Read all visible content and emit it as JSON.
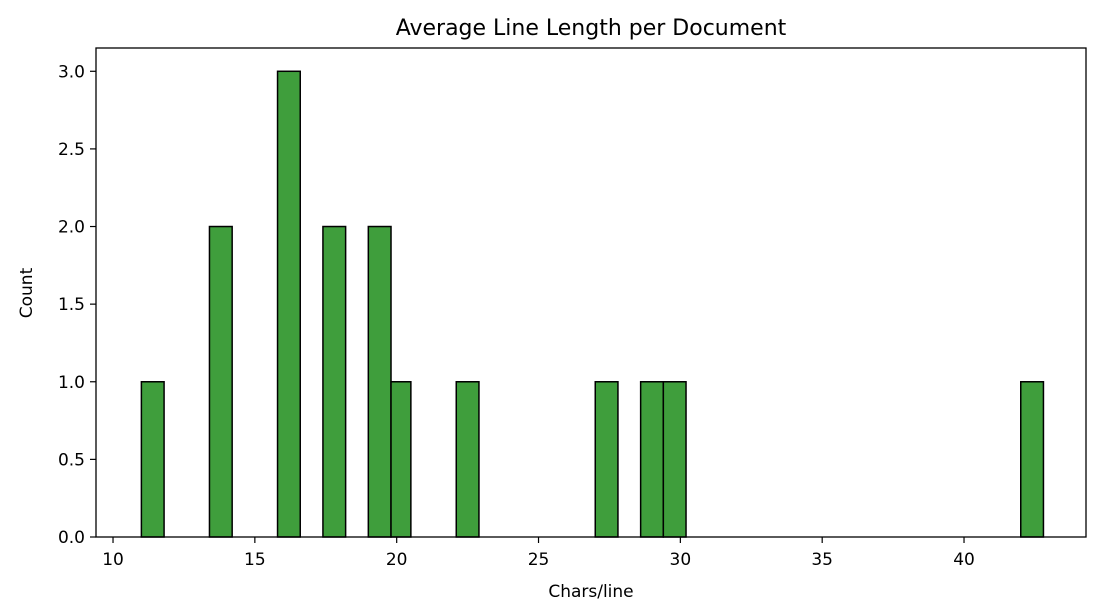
{
  "chart_data": {
    "type": "bar",
    "title": "Average Line Length per Document",
    "xlabel": "Chars/line",
    "ylabel": "Count",
    "xlim": [
      9.4,
      44.3
    ],
    "ylim": [
      0,
      3.15
    ],
    "bar_color": "#3f9e3c",
    "edge_color": "#000000",
    "grid": false,
    "bins": [
      {
        "x0": 11.0,
        "x1": 11.8,
        "value": 1
      },
      {
        "x0": 13.4,
        "x1": 14.2,
        "value": 2
      },
      {
        "x0": 15.8,
        "x1": 16.6,
        "value": 3
      },
      {
        "x0": 17.4,
        "x1": 18.2,
        "value": 2
      },
      {
        "x0": 19.0,
        "x1": 19.8,
        "value": 2
      },
      {
        "x0": 19.8,
        "x1": 20.5,
        "value": 1
      },
      {
        "x0": 22.1,
        "x1": 22.9,
        "value": 1
      },
      {
        "x0": 27.0,
        "x1": 27.8,
        "value": 1
      },
      {
        "x0": 28.6,
        "x1": 29.4,
        "value": 1
      },
      {
        "x0": 29.4,
        "x1": 30.2,
        "value": 1
      },
      {
        "x0": 42.0,
        "x1": 42.8,
        "value": 1
      }
    ],
    "xticks": [
      {
        "value": 10,
        "label": "10"
      },
      {
        "value": 15,
        "label": "15"
      },
      {
        "value": 20,
        "label": "20"
      },
      {
        "value": 25,
        "label": "25"
      },
      {
        "value": 30,
        "label": "30"
      },
      {
        "value": 35,
        "label": "35"
      },
      {
        "value": 40,
        "label": "40"
      }
    ],
    "yticks": [
      {
        "value": 0.0,
        "label": "0.0"
      },
      {
        "value": 0.5,
        "label": "0.5"
      },
      {
        "value": 1.0,
        "label": "1.0"
      },
      {
        "value": 1.5,
        "label": "1.5"
      },
      {
        "value": 2.0,
        "label": "2.0"
      },
      {
        "value": 2.5,
        "label": "2.5"
      },
      {
        "value": 3.0,
        "label": "3.0"
      }
    ]
  }
}
